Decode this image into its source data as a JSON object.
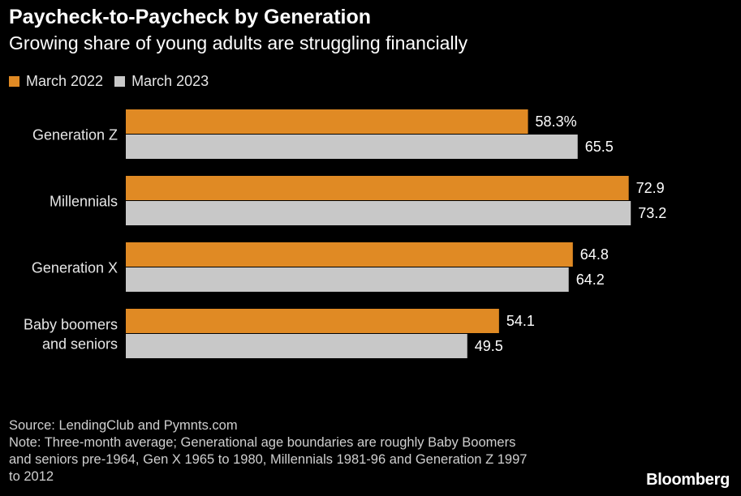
{
  "header": {
    "title": "Paycheck-to-Paycheck by Generation",
    "subtitle": "Growing share of young adults are struggling financially"
  },
  "colors": {
    "series_2022": "#e08a24",
    "series_2023": "#c8c8c8",
    "background": "#000000"
  },
  "chart_data": {
    "type": "bar",
    "orientation": "horizontal",
    "categories": [
      [
        "Generation Z"
      ],
      [
        "Millennials"
      ],
      [
        "Generation X"
      ],
      [
        "Baby boomers",
        "and seniors"
      ]
    ],
    "series": [
      {
        "name": "March 2022",
        "values": [
          58.3,
          72.9,
          64.8,
          54.1
        ],
        "labels": [
          "58.3%",
          "72.9",
          "64.8",
          "54.1"
        ]
      },
      {
        "name": "March 2023",
        "values": [
          65.5,
          73.2,
          64.2,
          49.5
        ],
        "labels": [
          "65.5",
          "73.2",
          "64.2",
          "49.5"
        ]
      }
    ],
    "xlim": [
      0,
      100
    ],
    "grid": false,
    "legend": "top-left"
  },
  "footer": {
    "source": "Source: LendingClub and Pymnts.com",
    "note": [
      "Note: Three-month average; Generational age boundaries are roughly Baby Boomers",
      "and seniors pre-1964, Gen X 1965 to 1980, Millennials 1981-96 and Generation Z 1997",
      "to 2012"
    ],
    "brand": "Bloomberg"
  }
}
